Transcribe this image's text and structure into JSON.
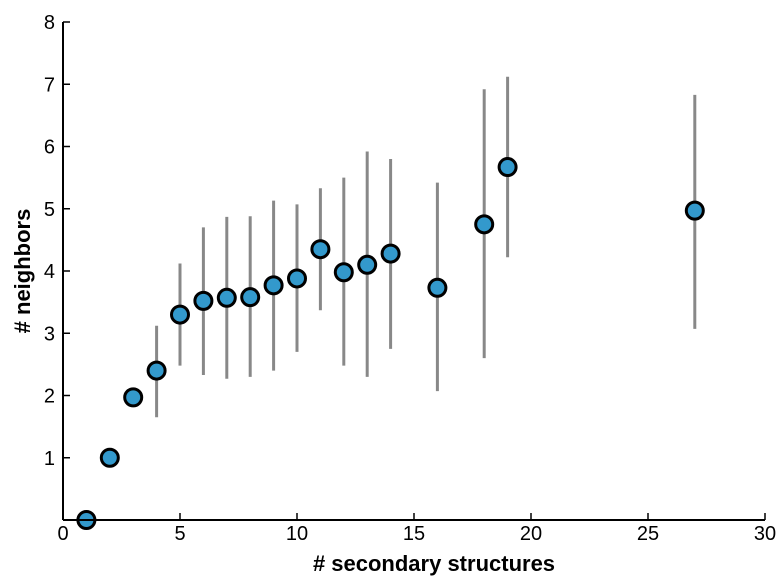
{
  "chart_data": {
    "type": "scatter",
    "title": "",
    "xlabel": "# secondary structures",
    "ylabel": "# neighbors",
    "xlim": [
      0,
      30
    ],
    "ylim": [
      0,
      8
    ],
    "xticks": [
      0,
      5,
      10,
      15,
      20,
      25,
      30
    ],
    "yticks": [
      1,
      2,
      3,
      4,
      5,
      6,
      7,
      8
    ],
    "grid": false,
    "legend": "none",
    "marker_color": "#3399cc",
    "marker_edge_color": "#000000",
    "errorbar_color": "#888888",
    "points": [
      {
        "x": 1,
        "y": 0.0,
        "lo": 0.0,
        "hi": 0.0
      },
      {
        "x": 2,
        "y": 1.0,
        "lo": 1.0,
        "hi": 1.0
      },
      {
        "x": 3,
        "y": 1.97,
        "lo": 1.85,
        "hi": 2.1
      },
      {
        "x": 4,
        "y": 2.4,
        "lo": 1.65,
        "hi": 3.12
      },
      {
        "x": 5,
        "y": 3.3,
        "lo": 2.48,
        "hi": 4.12
      },
      {
        "x": 6,
        "y": 3.52,
        "lo": 2.33,
        "hi": 4.7
      },
      {
        "x": 7,
        "y": 3.57,
        "lo": 2.27,
        "hi": 4.87
      },
      {
        "x": 8,
        "y": 3.58,
        "lo": 2.3,
        "hi": 4.88
      },
      {
        "x": 9,
        "y": 3.77,
        "lo": 2.4,
        "hi": 5.13
      },
      {
        "x": 10,
        "y": 3.88,
        "lo": 2.7,
        "hi": 5.07
      },
      {
        "x": 11,
        "y": 4.35,
        "lo": 3.37,
        "hi": 5.33
      },
      {
        "x": 12,
        "y": 3.98,
        "lo": 2.48,
        "hi": 5.5
      },
      {
        "x": 13,
        "y": 4.1,
        "lo": 2.3,
        "hi": 5.92
      },
      {
        "x": 14,
        "y": 4.28,
        "lo": 2.75,
        "hi": 5.8
      },
      {
        "x": 16,
        "y": 3.73,
        "lo": 2.07,
        "hi": 5.42
      },
      {
        "x": 18,
        "y": 4.75,
        "lo": 2.6,
        "hi": 6.92
      },
      {
        "x": 19,
        "y": 5.67,
        "lo": 4.22,
        "hi": 7.12
      },
      {
        "x": 27,
        "y": 4.97,
        "lo": 3.07,
        "hi": 6.83
      }
    ]
  }
}
